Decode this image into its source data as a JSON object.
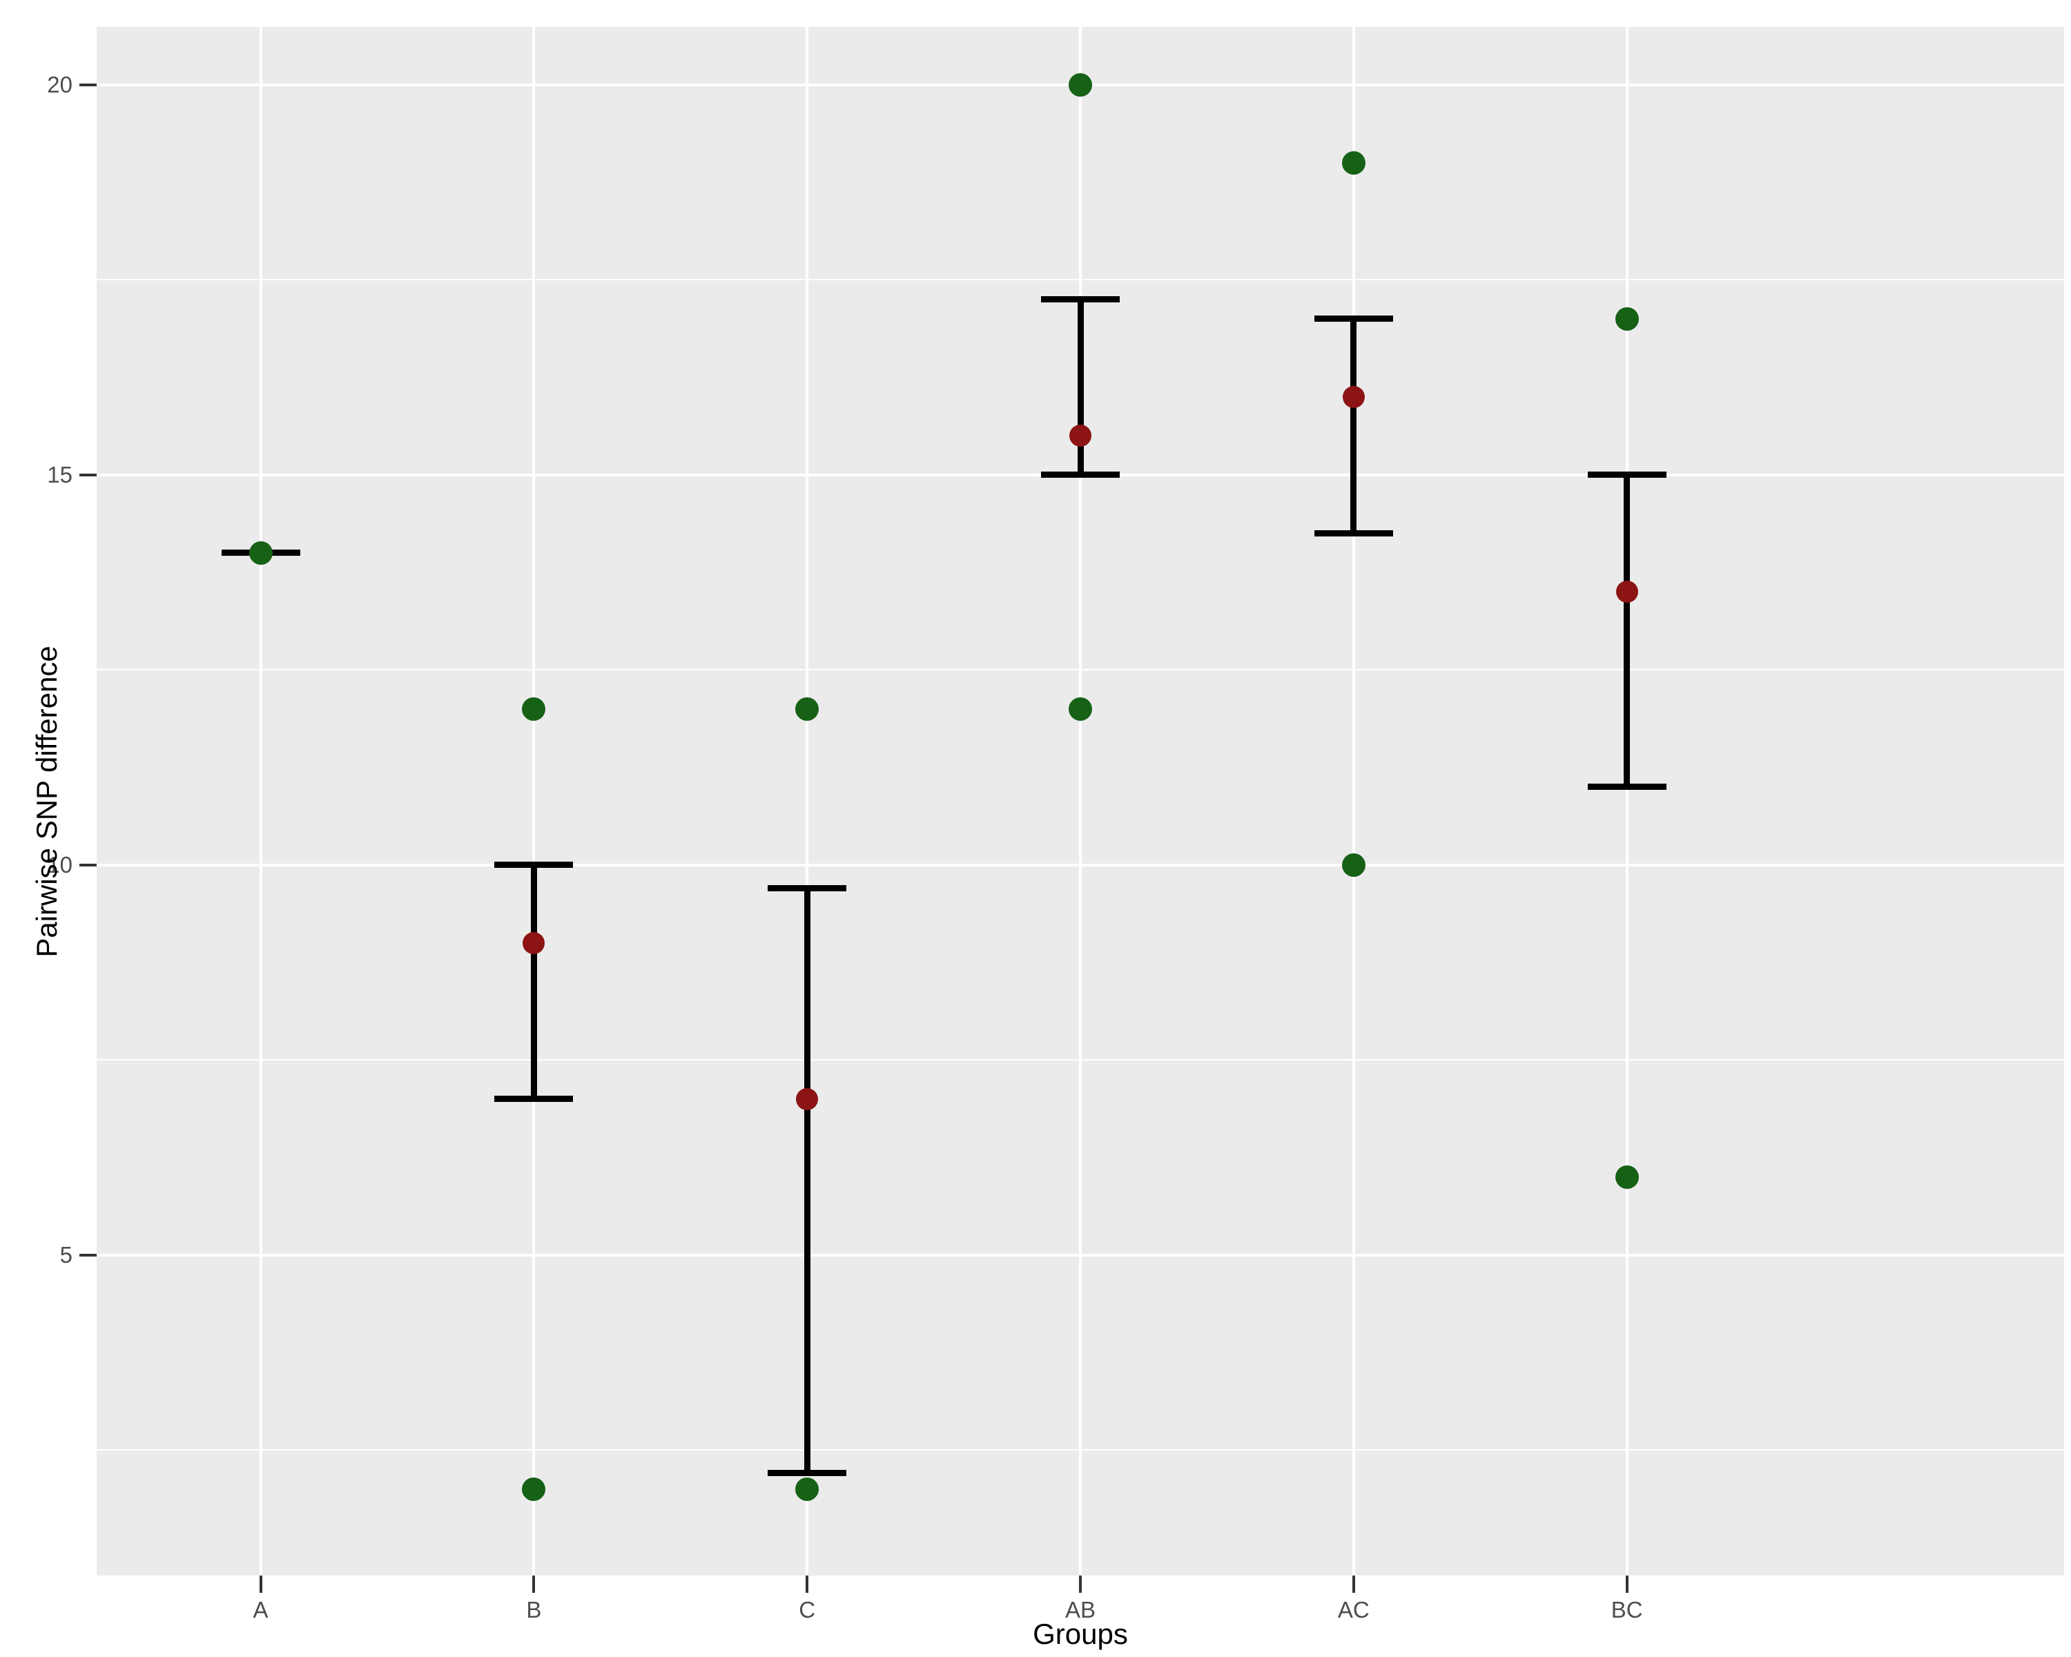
{
  "chart_data": {
    "type": "scatter",
    "title": "",
    "xlabel": "Groups",
    "ylabel": "Pairwise SNP difference",
    "categories": [
      "A",
      "B",
      "C",
      "AB",
      "AC",
      "BC"
    ],
    "groups": [
      {
        "label": "A",
        "points": [
          14
        ],
        "mean": 14,
        "bar": {
          "lo": 14,
          "hi": 14
        }
      },
      {
        "label": "B",
        "points": [
          12,
          2
        ],
        "mean": 9,
        "bar": {
          "lo": 7,
          "hi": 10
        }
      },
      {
        "label": "C",
        "points": [
          12,
          2
        ],
        "mean": 7,
        "bar": {
          "lo": 2.2,
          "hi": 9.7
        }
      },
      {
        "label": "AB",
        "points": [
          20,
          12
        ],
        "mean": 15.5,
        "bar": {
          "lo": 15,
          "hi": 17.25
        }
      },
      {
        "label": "AC",
        "points": [
          19,
          10
        ],
        "mean": 16,
        "bar": {
          "lo": 14.25,
          "hi": 17
        }
      },
      {
        "label": "BC",
        "points": [
          17,
          6
        ],
        "mean": 13.5,
        "bar": {
          "lo": 11,
          "hi": 15
        }
      }
    ],
    "y_ticks": [
      5,
      10,
      15,
      20
    ],
    "y_minor_ticks": [
      2.5,
      7.5,
      12.5,
      17.5
    ],
    "ylim": [
      0.89,
      20.74
    ],
    "grid": "on",
    "legend": "none",
    "colors": {
      "observation_point": "#166116",
      "mean_point": "#8C1414",
      "panel_background": "#EBEBEB",
      "gridline": "#FFFFFF",
      "tick_label": "#4D4D4D",
      "tick_mark": "#333333",
      "axis_title": "#000000",
      "error_bar": "#000000"
    }
  }
}
